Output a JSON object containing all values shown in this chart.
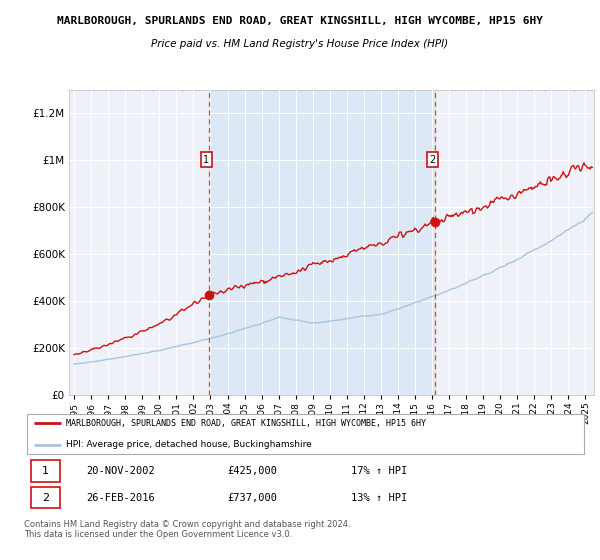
{
  "title": "MARLBOROUGH, SPURLANDS END ROAD, GREAT KINGSHILL, HIGH WYCOMBE, HP15 6HY",
  "subtitle": "Price paid vs. HM Land Registry's House Price Index (HPI)",
  "legend_line1": "MARLBOROUGH, SPURLANDS END ROAD, GREAT KINGSHILL, HIGH WYCOMBE, HP15 6HY",
  "legend_line2": "HPI: Average price, detached house, Buckinghamshire",
  "footer": "Contains HM Land Registry data © Crown copyright and database right 2024.\nThis data is licensed under the Open Government Licence v3.0.",
  "sale1_date": "20-NOV-2002",
  "sale1_price": 425000,
  "sale1_hpi_text": "17% ↑ HPI",
  "sale2_date": "26-FEB-2016",
  "sale2_price": 737000,
  "sale2_hpi_text": "13% ↑ HPI",
  "sale1_x": 2002.89,
  "sale2_x": 2016.15,
  "ylim_max": 1300000,
  "ytick_vals": [
    0,
    200000,
    400000,
    600000,
    800000,
    1000000,
    1200000
  ],
  "ytick_labels": [
    "£0",
    "£200K",
    "£400K",
    "£600K",
    "£800K",
    "£1M",
    "£1.2M"
  ],
  "xlim_lo": 1994.7,
  "xlim_hi": 2025.5,
  "hpi_color": "#a8c4e0",
  "price_color": "#cc1111",
  "vline_color": "#dd4444",
  "shade_color": "#dce8f5",
  "bg_plot": "#eef2f8",
  "bg_fig": "#ffffff",
  "grid_color": "#ffffff",
  "label_box_color": "#cc1111"
}
